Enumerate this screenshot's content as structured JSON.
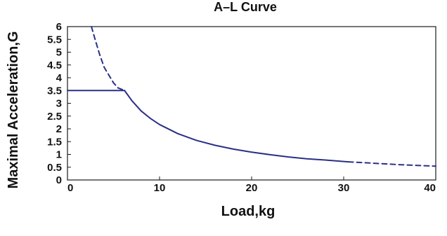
{
  "chart_data": {
    "type": "line",
    "title": "A–L Curve",
    "xlabel": "Load,kg",
    "ylabel": "Maximal Acceleration,G",
    "xlim": [
      0,
      40
    ],
    "ylim": [
      0,
      6
    ],
    "x_ticks": [
      0,
      10,
      20,
      30,
      40
    ],
    "x_tick_labels": [
      "0",
      "10",
      "20",
      "30",
      "40"
    ],
    "y_ticks": [
      0,
      0.5,
      1,
      1.5,
      2,
      2.5,
      3,
      3.5,
      4,
      4.5,
      5,
      5.5,
      6
    ],
    "y_tick_labels": [
      "0",
      "0.5",
      "1",
      "1.5",
      "2",
      "2.5",
      "3",
      "3.5",
      "4",
      "4.5",
      "5",
      "5.5",
      "6"
    ],
    "grid": false,
    "legend": "none",
    "line_color": "#2a2f86",
    "curve_constant": 21.7,
    "series": [
      {
        "style": "solid",
        "x": [
          0,
          6.2
        ],
        "y": [
          3.5,
          3.5
        ]
      },
      {
        "style": "dashed",
        "x": [
          2.6,
          3,
          3.5,
          4,
          4.5,
          5,
          5.5,
          6.2
        ],
        "y": [
          6.0,
          5.5,
          4.9,
          4.4,
          4.1,
          3.8,
          3.6,
          3.5
        ]
      },
      {
        "style": "solid",
        "x": [
          6.2,
          7,
          8,
          9,
          10,
          12,
          14,
          16,
          18,
          20,
          22,
          24,
          26,
          28,
          30.5
        ],
        "y": [
          3.5,
          3.1,
          2.7,
          2.41,
          2.17,
          1.81,
          1.55,
          1.36,
          1.21,
          1.09,
          0.99,
          0.9,
          0.83,
          0.78,
          0.71
        ]
      },
      {
        "style": "dashed",
        "x": [
          30.5,
          32,
          34,
          36,
          38,
          40
        ],
        "y": [
          0.71,
          0.68,
          0.64,
          0.6,
          0.57,
          0.54
        ]
      }
    ]
  }
}
